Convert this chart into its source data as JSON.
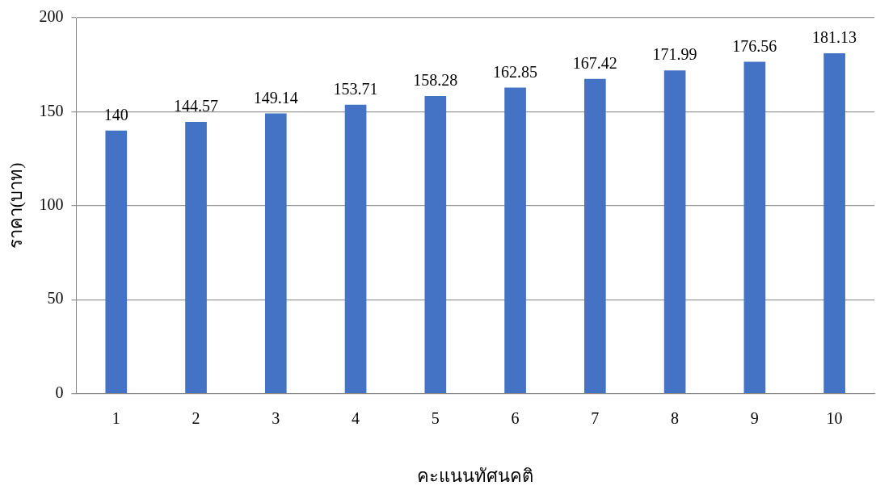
{
  "chart_data": {
    "type": "bar",
    "xlabel": "คะแนนทัศนคติ",
    "ylabel": "ราคา(บาท)",
    "categories": [
      "1",
      "2",
      "3",
      "4",
      "5",
      "6",
      "7",
      "8",
      "9",
      "10"
    ],
    "values": [
      140,
      144.57,
      149.14,
      153.71,
      158.28,
      162.85,
      167.42,
      171.99,
      176.56,
      181.13
    ],
    "color": "#4472c4",
    "ylim": [
      0,
      200
    ],
    "yticks": [
      0,
      50,
      100,
      150,
      200
    ],
    "grid": "y",
    "data_labels": true
  }
}
